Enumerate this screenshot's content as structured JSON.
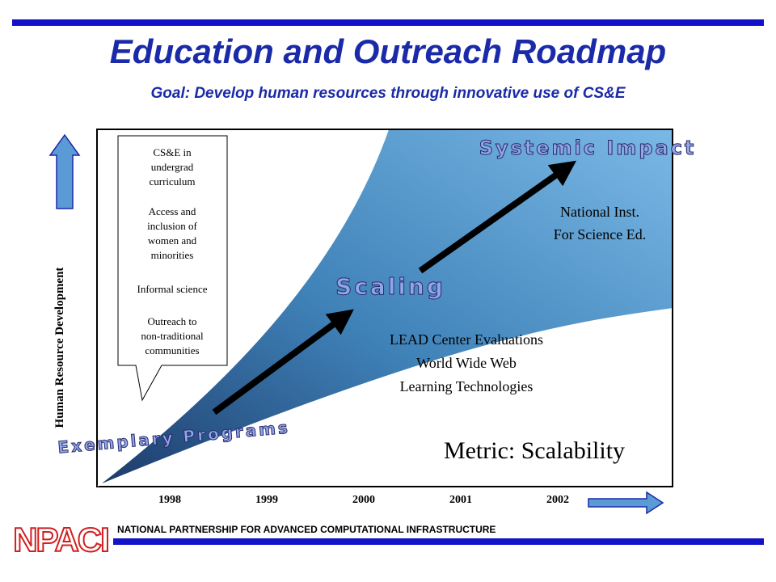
{
  "header": {
    "title": "Education and Outreach Roadmap",
    "subtitle": "Goal: Develop human resources through innovative use of CS&E"
  },
  "callout": {
    "items": [
      [
        "CS&E in",
        "undergrad",
        "curriculum"
      ],
      [
        "Access and",
        "inclusion of",
        "women and",
        "minorities"
      ],
      [
        "Informal science"
      ],
      [
        "Outreach to",
        "non-traditional",
        "communities"
      ]
    ]
  },
  "stages": {
    "systemic": "Systemic Impact",
    "scaling": "Scaling",
    "exemplary": "Exemplary Programs"
  },
  "notes": {
    "national": [
      "National Inst.",
      "For Science Ed."
    ],
    "lead": [
      "LEAD Center Evaluations",
      "World Wide Web",
      "Learning Technologies"
    ],
    "metric": "Metric: Scalability"
  },
  "axis": {
    "y_label": "Human Resource Development",
    "years": [
      "1998",
      "1999",
      "2000",
      "2001",
      "2002"
    ]
  },
  "footer": {
    "logo": "NPACI",
    "text": "NATIONAL PARTNERSHIP FOR ADVANCED COMPUTATIONAL INFRASTRUCTURE"
  }
}
